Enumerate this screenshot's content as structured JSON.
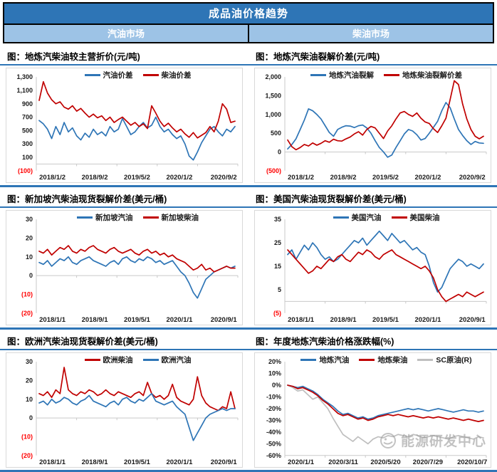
{
  "header": {
    "title": "成品油价格趋势",
    "left_tab": "汽油市场",
    "right_tab": "柴油市场"
  },
  "colors": {
    "blue": "#2E75B6",
    "red": "#C00000",
    "gray": "#BFBFBF",
    "neg_red": "#FF0000",
    "header_dark": "#2E75B6",
    "header_light": "#9DC3E6",
    "separator": "#2E75B6"
  },
  "watermark": {
    "text": "能源研发中心"
  },
  "chart_data": [
    {
      "type": "line",
      "title": "图：地炼汽柴油较主营折价(元/吨)",
      "ylim": [
        -100,
        1300
      ],
      "axis_v": 0,
      "yticks": [
        {
          "v": 1300,
          "label": "1,300"
        },
        {
          "v": 1100,
          "label": "1,100"
        },
        {
          "v": 900,
          "label": "900"
        },
        {
          "v": 700,
          "label": "700"
        },
        {
          "v": 500,
          "label": "500"
        },
        {
          "v": 300,
          "label": "300"
        },
        {
          "v": 100,
          "label": "100"
        },
        {
          "v": -100,
          "label": "(100)",
          "red": true
        }
      ],
      "xticks": [
        "2018/1/2",
        "2018/9/2",
        "2019/5/2",
        "2020/1/2",
        "2020/9/2"
      ],
      "series": [
        {
          "name": "汽油价差",
          "color": "blue",
          "values": [
            650,
            600,
            520,
            380,
            560,
            440,
            620,
            480,
            540,
            420,
            360,
            460,
            400,
            520,
            440,
            480,
            420,
            560,
            480,
            520,
            680,
            560,
            440,
            480,
            560,
            620,
            540,
            580,
            700,
            560,
            480,
            520,
            440,
            380,
            420,
            300,
            120,
            60,
            180,
            320,
            420,
            520,
            560,
            480,
            420,
            520,
            480,
            560
          ]
        },
        {
          "name": "柴油价差",
          "color": "red",
          "values": [
            950,
            1230,
            1060,
            960,
            900,
            930,
            850,
            820,
            870,
            790,
            830,
            760,
            700,
            745,
            690,
            720,
            650,
            700,
            620,
            665,
            700,
            640,
            580,
            620,
            560,
            600,
            530,
            870,
            760,
            640,
            560,
            610,
            540,
            480,
            520,
            450,
            400,
            470,
            390,
            430,
            470,
            560,
            480,
            640,
            900,
            820,
            620,
            640
          ]
        }
      ]
    },
    {
      "type": "line",
      "title": "图：地炼汽柴油裂解价差(元/吨)",
      "ylim": [
        -500,
        2000
      ],
      "axis_v": 0,
      "yticks": [
        {
          "v": 2000,
          "label": "2,000"
        },
        {
          "v": 1500,
          "label": "1,500"
        },
        {
          "v": 1000,
          "label": "1,000"
        },
        {
          "v": 500,
          "label": "500"
        },
        {
          "v": 0,
          "label": "0"
        },
        {
          "v": -500,
          "label": "(500)",
          "red": true
        }
      ],
      "xticks": [
        "2018/1/2",
        "2018/9/2",
        "2019/5/2",
        "2020/1/2",
        "2020/9/2"
      ],
      "series": [
        {
          "name": "地炼汽油裂解",
          "color": "blue",
          "values": [
            80,
            200,
            350,
            600,
            850,
            1150,
            1100,
            1000,
            880,
            700,
            520,
            420,
            600,
            660,
            700,
            690,
            650,
            700,
            720,
            640,
            500,
            300,
            120,
            0,
            -140,
            -80,
            120,
            300,
            480,
            600,
            560,
            460,
            320,
            360,
            500,
            660,
            820,
            1100,
            1320,
            1180,
            880,
            600,
            440,
            300,
            200,
            280,
            240,
            230
          ]
        },
        {
          "name": "地炼柴油裂解价差",
          "color": "red",
          "values": [
            320,
            140,
            60,
            120,
            200,
            160,
            240,
            180,
            230,
            300,
            260,
            340,
            300,
            290,
            350,
            400,
            480,
            540,
            450,
            600,
            680,
            640,
            500,
            360,
            560,
            700,
            880,
            1040,
            1080,
            1000,
            950,
            1040,
            900,
            800,
            760,
            620,
            520,
            700,
            900,
            1400,
            1900,
            1800,
            1280,
            880,
            600,
            420,
            350,
            420
          ]
        }
      ]
    },
    {
      "type": "line",
      "title": "图：新加坡汽柴油现货裂解价差(美元/桶)",
      "ylim": [
        -20,
        30
      ],
      "axis_v": 0,
      "yticks": [
        {
          "v": 30,
          "label": "30"
        },
        {
          "v": 20,
          "label": "20"
        },
        {
          "v": 10,
          "label": "10"
        },
        {
          "v": 0,
          "label": "0"
        },
        {
          "v": -10,
          "label": "(10)",
          "red": true
        },
        {
          "v": -20,
          "label": "(20)",
          "red": true
        }
      ],
      "xticks": [
        "2018/1/1",
        "2018/9/1",
        "2019/5/1",
        "2020/1/1",
        "2020/9/1"
      ],
      "series": [
        {
          "name": "新加坡汽油",
          "color": "blue",
          "values": [
            7,
            6,
            8,
            5,
            7,
            9,
            8,
            10,
            7,
            6,
            8,
            9,
            10,
            8,
            7,
            6,
            5,
            7,
            8,
            6,
            9,
            10,
            8,
            7,
            9,
            8,
            10,
            9,
            7,
            8,
            6,
            7,
            8,
            5,
            2,
            0,
            -4,
            -9,
            -12,
            -7,
            -2,
            0,
            2,
            3,
            4,
            5,
            4,
            5
          ]
        },
        {
          "name": "新加坡柴油",
          "color": "red",
          "values": [
            13,
            12,
            14,
            11,
            13,
            15,
            14,
            16,
            13,
            12,
            14,
            13,
            15,
            16,
            14,
            13,
            12,
            14,
            15,
            13,
            12,
            13,
            14,
            12,
            11,
            13,
            14,
            12,
            13,
            11,
            12,
            10,
            11,
            9,
            8,
            7,
            5,
            3,
            4,
            6,
            3,
            4,
            2,
            3,
            4,
            5,
            4,
            4
          ]
        }
      ]
    },
    {
      "type": "line",
      "title": "图：美国汽柴油现货裂解价差(美元/桶)",
      "ylim": [
        -5,
        35
      ],
      "axis_v": 0,
      "yticks": [
        {
          "v": 35,
          "label": "35"
        },
        {
          "v": 25,
          "label": "25"
        },
        {
          "v": 15,
          "label": "15"
        },
        {
          "v": 5,
          "label": "5"
        },
        {
          "v": -5,
          "label": "(5)",
          "red": true
        }
      ],
      "xticks": [
        "2018/1/1",
        "2018/9/1",
        "2019/5/1",
        "2020/1/1",
        "2020/9/1"
      ],
      "series": [
        {
          "name": "美国汽油",
          "color": "blue",
          "values": [
            20,
            22,
            18,
            21,
            24,
            22,
            25,
            23,
            20,
            18,
            19,
            17,
            18,
            20,
            22,
            24,
            26,
            25,
            27,
            24,
            26,
            28,
            30,
            28,
            26,
            29,
            27,
            25,
            26,
            24,
            22,
            23,
            21,
            20,
            15,
            8,
            4,
            6,
            10,
            14,
            16,
            18,
            17,
            15,
            16,
            15,
            14,
            16
          ]
        },
        {
          "name": "美国柴油",
          "color": "red",
          "values": [
            22,
            20,
            18,
            16,
            14,
            12,
            13,
            15,
            14,
            16,
            18,
            17,
            19,
            20,
            18,
            17,
            19,
            21,
            20,
            22,
            21,
            19,
            18,
            20,
            21,
            22,
            20,
            19,
            18,
            17,
            16,
            15,
            14,
            15,
            13,
            10,
            5,
            2,
            0,
            1,
            2,
            3,
            2,
            4,
            3,
            2,
            3,
            4
          ]
        }
      ]
    },
    {
      "type": "line",
      "title": "图：欧洲汽柴油现货裂解价差(美元/桶)",
      "ylim": [
        -20,
        30
      ],
      "axis_v": 0,
      "yticks": [
        {
          "v": 30,
          "label": "30"
        },
        {
          "v": 20,
          "label": "20"
        },
        {
          "v": 10,
          "label": "10"
        },
        {
          "v": 0,
          "label": "0"
        },
        {
          "v": -10,
          "label": "(10)",
          "red": true
        },
        {
          "v": -20,
          "label": "(20)",
          "red": true
        }
      ],
      "xticks": [
        "2018/1/1",
        "2018/9/1",
        "2019/5/1",
        "2020/1/1",
        "2020/9/1"
      ],
      "series": [
        {
          "name": "欧洲柴油",
          "color": "red",
          "values": [
            13,
            12,
            14,
            11,
            15,
            13,
            27,
            15,
            13,
            12,
            14,
            13,
            15,
            14,
            12,
            13,
            15,
            13,
            12,
            14,
            13,
            12,
            11,
            13,
            14,
            12,
            19,
            13,
            11,
            12,
            10,
            12,
            18,
            11,
            9,
            8,
            7,
            10,
            22,
            12,
            8,
            6,
            5,
            4,
            6,
            5,
            14,
            5
          ]
        },
        {
          "name": "欧洲汽油",
          "color": "blue",
          "values": [
            8,
            9,
            7,
            10,
            8,
            9,
            11,
            10,
            8,
            7,
            9,
            10,
            12,
            9,
            8,
            7,
            6,
            8,
            9,
            7,
            10,
            11,
            9,
            8,
            10,
            9,
            11,
            13,
            9,
            8,
            7,
            8,
            9,
            6,
            4,
            2,
            -5,
            -12,
            -8,
            -4,
            0,
            2,
            3,
            4,
            5,
            4,
            5,
            5
          ]
        }
      ]
    },
    {
      "type": "line",
      "title": "图：年度地炼汽柴油价格涨跌幅(%)",
      "ylim": [
        -60,
        20
      ],
      "axis_v": -60,
      "yticks": [
        {
          "v": 20,
          "label": "20%"
        },
        {
          "v": 10,
          "label": "10%"
        },
        {
          "v": 0,
          "label": "0%"
        },
        {
          "v": -10,
          "label": "-10%"
        },
        {
          "v": -20,
          "label": "-20%"
        },
        {
          "v": -30,
          "label": "-30%"
        },
        {
          "v": -40,
          "label": "-40%"
        },
        {
          "v": -50,
          "label": "-50%"
        },
        {
          "v": -60,
          "label": "-60%"
        }
      ],
      "xticks": [
        "2020/1/1",
        "2020/3/11",
        "2020/5/20",
        "2020/7/29",
        "2020/10/7"
      ],
      "series": [
        {
          "name": "SC原油(R)",
          "color": "gray",
          "legend_pos": 2,
          "values": [
            0,
            -2,
            -5,
            -4,
            -8,
            -12,
            -10,
            -15,
            -20,
            -28,
            -35,
            -42,
            -45,
            -48,
            -44,
            -47,
            -50,
            -46,
            -44,
            -45,
            -43,
            -44,
            -42,
            -43,
            -44,
            -42,
            -43,
            -45,
            -44,
            -43,
            -44,
            -45,
            -46,
            -44,
            -43,
            -44,
            -45,
            -46,
            -44,
            -45
          ]
        },
        {
          "name": "地炼汽油",
          "color": "blue",
          "legend_pos": 0,
          "values": [
            0,
            -1,
            -2,
            -1,
            -3,
            -5,
            -8,
            -12,
            -15,
            -18,
            -22,
            -25,
            -24,
            -26,
            -28,
            -27,
            -29,
            -28,
            -26,
            -25,
            -24,
            -23,
            -22,
            -21,
            -20,
            -21,
            -20,
            -21,
            -22,
            -21,
            -20,
            -21,
            -22,
            -23,
            -22,
            -21,
            -22,
            -22,
            -23,
            -22
          ]
        },
        {
          "name": "地炼柴油",
          "color": "red",
          "legend_pos": 1,
          "values": [
            0,
            -1,
            -3,
            -2,
            -4,
            -6,
            -9,
            -13,
            -16,
            -20,
            -24,
            -26,
            -25,
            -27,
            -29,
            -28,
            -30,
            -29,
            -27,
            -26,
            -25,
            -26,
            -25,
            -26,
            -27,
            -26,
            -27,
            -28,
            -27,
            -28,
            -27,
            -28,
            -29,
            -28,
            -29,
            -30,
            -29,
            -30,
            -31,
            -30
          ]
        }
      ]
    }
  ]
}
